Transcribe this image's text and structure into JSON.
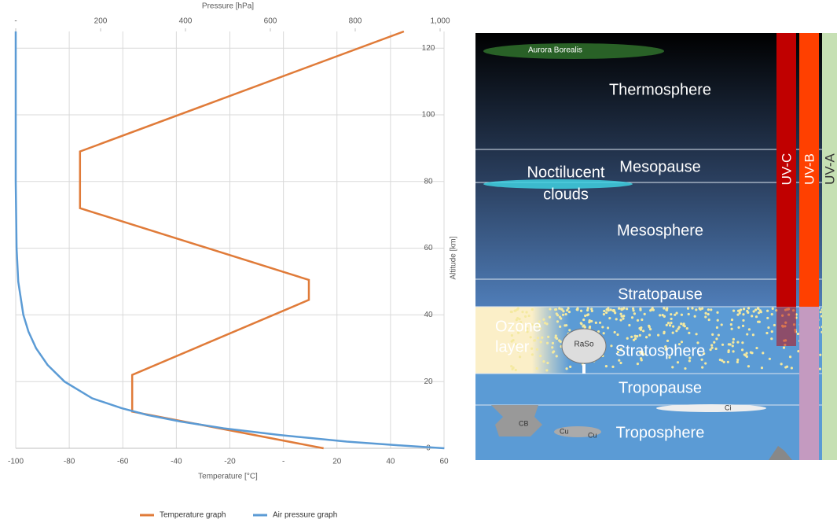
{
  "chart_data": {
    "type": "line",
    "x_title": "Temperature [°C]",
    "x2_title": "Pressure [hPa]",
    "y_title": "Altitude [km]",
    "xlim": [
      -100,
      60
    ],
    "xticks": [
      -100,
      -80,
      -60,
      -40,
      -20,
      {
        "value": 0,
        "label": "-"
      },
      20,
      40,
      60
    ],
    "x2lim": [
      0,
      1000
    ],
    "x2ticks": [
      {
        "value": 0,
        "label": "-"
      },
      200,
      400,
      600,
      800,
      {
        "value": 1000,
        "label": "1,000"
      }
    ],
    "ylim": [
      0,
      125
    ],
    "yticks": [
      0,
      20,
      40,
      60,
      80,
      100,
      120
    ],
    "grid": true,
    "series": [
      {
        "name": "Temperature graph",
        "color": "#e07b39",
        "x": [
          15,
          -56.5,
          -56.5,
          9.5,
          9.5,
          -76,
          -76,
          45
        ],
        "values": [
          0,
          11,
          22,
          44.5,
          50.5,
          72,
          89,
          125
        ]
      },
      {
        "name": "Air pressure graph",
        "color": "#5b9bd5",
        "axis": "x2",
        "x": [
          1010,
          890,
          780,
          700,
          620,
          490,
          390,
          310,
          250,
          180,
          115,
          75,
          48,
          30,
          18,
          6,
          2,
          0,
          0,
          0
        ],
        "values": [
          0,
          1,
          2,
          3,
          4,
          6,
          8,
          10,
          12,
          15,
          20,
          25,
          30,
          35,
          40,
          50,
          60,
          80,
          100,
          125
        ]
      }
    ]
  },
  "diagram": {
    "aurora": "Aurora Borealis",
    "thermosphere": "Thermosphere",
    "noctilucent": "Noctilucent",
    "clouds": "clouds",
    "mesopause": "Mesopause",
    "mesosphere": "Mesosphere",
    "stratopause": "Stratopause",
    "ozone": "Ozone",
    "layer": "layer",
    "raso": "RaSo",
    "stratosphere": "Stratosphere",
    "tropopause": "Tropopause",
    "ci": "Ci",
    "cb": "CB",
    "cu1": "Cu",
    "cu2": "Cu",
    "troposphere": "Troposphere",
    "uvc": "UV-C",
    "uvb": "UV-B",
    "uva": "UV-A"
  }
}
